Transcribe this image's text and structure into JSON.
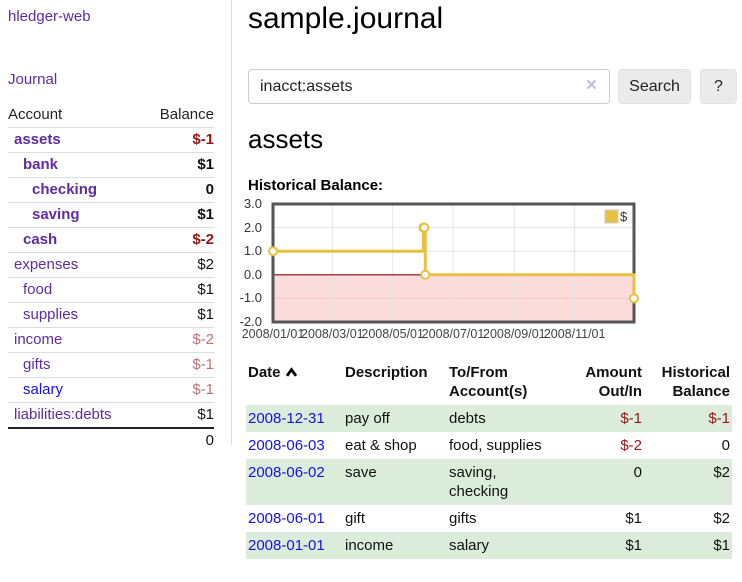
{
  "app": {
    "title": "hledger-web",
    "nav_journal": "Journal"
  },
  "colors": {
    "link_purple": "#5f2ca0",
    "link_blue": "#1414dc",
    "negative_strong": "#961414",
    "negative_soft": "#be7373",
    "row_green": "#dcecdb",
    "chart_gold": "#e8c142"
  },
  "sidebar": {
    "accounts_table": {
      "headers": {
        "account": "Account",
        "balance": "Balance"
      },
      "rows": [
        {
          "name": "assets",
          "indent": 1,
          "bold": true,
          "name_color": "purple",
          "balance": "$-1",
          "balance_color": "neg-strong"
        },
        {
          "name": "bank",
          "indent": 2,
          "bold": true,
          "name_color": "purple",
          "balance": "$1",
          "balance_color": "pos"
        },
        {
          "name": "checking",
          "indent": 3,
          "bold": true,
          "name_color": "purple",
          "balance": "0",
          "balance_color": "pos"
        },
        {
          "name": "saving",
          "indent": 3,
          "bold": true,
          "name_color": "purple",
          "balance": "$1",
          "balance_color": "pos"
        },
        {
          "name": "cash",
          "indent": 2,
          "bold": true,
          "name_color": "purple",
          "balance": "$-2",
          "balance_color": "neg-strong"
        },
        {
          "name": "expenses",
          "indent": 1,
          "bold": false,
          "name_color": "purple",
          "balance": "$2",
          "balance_color": "pos"
        },
        {
          "name": "food",
          "indent": 2,
          "bold": false,
          "name_color": "purple",
          "balance": "$1",
          "balance_color": "pos"
        },
        {
          "name": "supplies",
          "indent": 2,
          "bold": false,
          "name_color": "purple",
          "balance": "$1",
          "balance_color": "pos"
        },
        {
          "name": "income",
          "indent": 1,
          "bold": false,
          "name_color": "purple",
          "balance": "$-2",
          "balance_color": "neg-soft"
        },
        {
          "name": "gifts",
          "indent": 2,
          "bold": false,
          "name_color": "purple",
          "balance": "$-1",
          "balance_color": "neg-soft"
        },
        {
          "name": "salary",
          "indent": 2,
          "bold": false,
          "name_color": "blue",
          "balance": "$-1",
          "balance_color": "neg-soft"
        },
        {
          "name": "liabilities:debts",
          "indent": 1,
          "bold": false,
          "name_color": "purple",
          "balance": "$1",
          "balance_color": "pos"
        }
      ],
      "total": "0"
    }
  },
  "main": {
    "title": "sample.journal",
    "search": {
      "value": "inacct:assets",
      "clear_icon": "×",
      "search_label": "Search",
      "help_label": "?"
    },
    "account_heading": "assets",
    "chart_label": "Historical Balance:"
  },
  "chart_data": {
    "type": "line",
    "step": true,
    "title": "Historical Balance",
    "series": [
      {
        "name": "$",
        "color": "#e8c142",
        "points": [
          [
            "2008-01-01",
            1
          ],
          [
            "2008-06-01",
            2
          ],
          [
            "2008-06-02",
            2
          ],
          [
            "2008-06-03",
            0
          ],
          [
            "2008-12-31",
            -1
          ]
        ]
      }
    ],
    "x_ticks": [
      "2008/01/01",
      "2008/03/01",
      "2008/05/01",
      "2008/07/01",
      "2008/09/01",
      "2008/11/01"
    ],
    "y_ticks": [
      3.0,
      2.0,
      1.0,
      0.0,
      -1.0,
      -2.0
    ],
    "xlim": [
      "2008-01-01",
      "2008-12-31"
    ],
    "ylim": [
      -2,
      3
    ],
    "grid": true,
    "negative_region_color": "#fcdbdb",
    "zero_line_color": "#8b0000",
    "border_color": "#555",
    "legend": {
      "label": "$",
      "position": "top-right"
    }
  },
  "register_table": {
    "headers": {
      "date": "Date",
      "description": "Description",
      "accounts": "To/From Account(s)",
      "amount": "Amount Out/In",
      "balance": "Historical Balance"
    },
    "rows": [
      {
        "date": "2008-12-31",
        "description": "pay off",
        "accounts": "debts",
        "amount": "$-1",
        "amount_color": "neg",
        "balance": "$-1",
        "balance_color": "neg"
      },
      {
        "date": "2008-06-03",
        "description": "eat & shop",
        "accounts": "food, supplies",
        "amount": "$-2",
        "amount_color": "neg",
        "balance": "0",
        "balance_color": "pos"
      },
      {
        "date": "2008-06-02",
        "description": "save",
        "accounts": "saving, checking",
        "amount": "0",
        "amount_color": "pos",
        "balance": "$2",
        "balance_color": "pos"
      },
      {
        "date": "2008-06-01",
        "description": "gift",
        "accounts": "gifts",
        "amount": "$1",
        "amount_color": "pos",
        "balance": "$2",
        "balance_color": "pos"
      },
      {
        "date": "2008-01-01",
        "description": "income",
        "accounts": "salary",
        "amount": "$1",
        "amount_color": "pos",
        "balance": "$1",
        "balance_color": "pos"
      }
    ]
  }
}
